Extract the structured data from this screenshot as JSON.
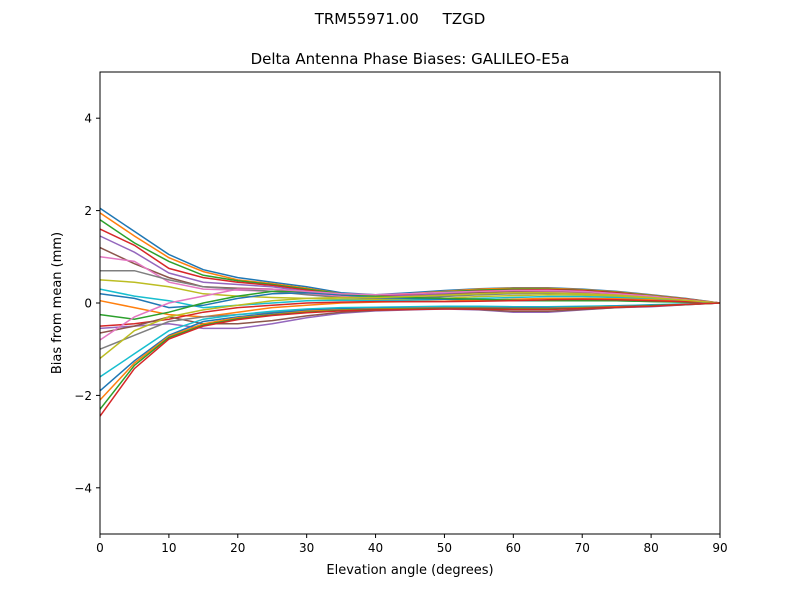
{
  "suptitle": "TRM55971.00     TZGD",
  "chart_data": {
    "type": "line",
    "title": "Delta Antenna Phase Biases: GALILEO-E5a",
    "xlabel": "Elevation angle (degrees)",
    "ylabel": "Bias from mean (mm)",
    "xlim": [
      0,
      90
    ],
    "ylim": [
      -5,
      5
    ],
    "xticks": [
      0,
      10,
      20,
      30,
      40,
      50,
      60,
      70,
      80,
      90
    ],
    "yticks": [
      -4,
      -2,
      0,
      2,
      4
    ],
    "ytick_labels": [
      "−4",
      "−2",
      "0",
      "2",
      "4"
    ],
    "grid": false,
    "legend": "none",
    "colors": [
      "#1f77b4",
      "#ff7f0e",
      "#2ca02c",
      "#d62728",
      "#9467bd",
      "#8c564b",
      "#e377c2",
      "#7f7f7f",
      "#bcbd22",
      "#17becf"
    ],
    "x": [
      0,
      5,
      10,
      15,
      20,
      25,
      30,
      35,
      40,
      45,
      50,
      55,
      60,
      65,
      70,
      75,
      80,
      85,
      90
    ],
    "series": [
      {
        "values": [
          2.05,
          1.55,
          1.05,
          0.72,
          0.55,
          0.45,
          0.35,
          0.22,
          0.18,
          0.22,
          0.27,
          0.31,
          0.33,
          0.33,
          0.3,
          0.25,
          0.18,
          0.1,
          0
        ]
      },
      {
        "values": [
          1.95,
          1.45,
          0.98,
          0.68,
          0.5,
          0.42,
          0.32,
          0.2,
          0.17,
          0.2,
          0.25,
          0.3,
          0.32,
          0.32,
          0.29,
          0.24,
          0.17,
          0.09,
          0
        ]
      },
      {
        "values": [
          1.8,
          1.3,
          0.9,
          0.6,
          0.48,
          0.4,
          0.3,
          0.2,
          0.16,
          0.19,
          0.24,
          0.28,
          0.3,
          0.3,
          0.28,
          0.23,
          0.16,
          0.08,
          0
        ]
      },
      {
        "values": [
          1.6,
          1.25,
          0.75,
          0.55,
          0.45,
          0.38,
          0.28,
          0.18,
          0.15,
          0.18,
          0.22,
          0.26,
          0.28,
          0.29,
          0.27,
          0.22,
          0.15,
          0.08,
          0
        ]
      },
      {
        "values": [
          1.45,
          1.1,
          0.65,
          0.45,
          0.4,
          0.35,
          0.25,
          0.17,
          0.14,
          0.16,
          0.2,
          0.24,
          0.26,
          0.27,
          0.25,
          0.2,
          0.14,
          0.07,
          0
        ]
      },
      {
        "values": [
          1.2,
          0.85,
          0.55,
          0.35,
          0.32,
          0.3,
          0.22,
          0.15,
          0.12,
          0.14,
          0.18,
          0.22,
          0.24,
          0.25,
          0.23,
          0.19,
          0.13,
          0.07,
          0
        ]
      },
      {
        "values": [
          1.0,
          0.9,
          0.45,
          0.3,
          0.28,
          0.25,
          0.2,
          0.14,
          0.1,
          0.12,
          0.16,
          0.2,
          0.22,
          0.23,
          0.21,
          0.17,
          0.12,
          0.06,
          0
        ]
      },
      {
        "values": [
          0.7,
          0.7,
          0.5,
          0.35,
          0.3,
          0.25,
          0.18,
          0.12,
          0.09,
          0.1,
          0.14,
          0.18,
          0.2,
          0.21,
          0.2,
          0.16,
          0.11,
          0.06,
          0
        ]
      },
      {
        "values": [
          0.5,
          0.45,
          0.35,
          0.2,
          0.15,
          0.12,
          0.1,
          0.08,
          0.07,
          0.08,
          0.1,
          0.14,
          0.16,
          0.18,
          0.17,
          0.14,
          0.1,
          0.05,
          0
        ]
      },
      {
        "values": [
          0.3,
          0.15,
          0.05,
          -0.1,
          -0.05,
          0.0,
          0.05,
          0.06,
          0.05,
          0.06,
          0.08,
          0.1,
          0.12,
          0.14,
          0.14,
          0.12,
          0.08,
          0.04,
          0
        ]
      },
      {
        "values": [
          0.2,
          0.1,
          -0.1,
          -0.05,
          0.1,
          0.2,
          0.22,
          0.18,
          0.12,
          0.1,
          0.08,
          0.06,
          0.05,
          0.05,
          0.05,
          0.05,
          0.04,
          0.02,
          0
        ]
      },
      {
        "values": [
          0.05,
          -0.1,
          -0.25,
          -0.3,
          -0.2,
          -0.1,
          -0.05,
          0.0,
          0.02,
          0.03,
          0.04,
          0.06,
          0.08,
          0.1,
          0.1,
          0.09,
          0.07,
          0.03,
          0
        ]
      },
      {
        "values": [
          -0.25,
          -0.35,
          -0.2,
          0.0,
          0.15,
          0.25,
          0.25,
          0.2,
          0.15,
          0.12,
          0.1,
          0.08,
          0.06,
          0.05,
          0.05,
          0.05,
          0.03,
          0.02,
          0
        ]
      },
      {
        "values": [
          -0.5,
          -0.45,
          -0.35,
          -0.2,
          -0.1,
          -0.05,
          0.0,
          0.02,
          0.03,
          0.03,
          0.03,
          0.04,
          0.05,
          0.07,
          0.08,
          0.07,
          0.05,
          0.03,
          0
        ]
      },
      {
        "values": [
          -0.55,
          -0.5,
          -0.45,
          -0.55,
          -0.55,
          -0.45,
          -0.32,
          -0.22,
          -0.17,
          -0.15,
          -0.13,
          -0.15,
          -0.2,
          -0.2,
          -0.15,
          -0.1,
          -0.08,
          -0.04,
          0
        ]
      },
      {
        "values": [
          -0.65,
          -0.5,
          -0.3,
          -0.45,
          -0.45,
          -0.38,
          -0.28,
          -0.2,
          -0.16,
          -0.14,
          -0.12,
          -0.14,
          -0.18,
          -0.18,
          -0.14,
          -0.1,
          -0.07,
          -0.04,
          0
        ]
      },
      {
        "values": [
          -0.8,
          -0.3,
          0.0,
          0.15,
          0.3,
          0.3,
          0.25,
          0.2,
          0.18,
          0.2,
          0.23,
          0.25,
          0.27,
          0.27,
          0.25,
          0.2,
          0.15,
          0.07,
          0
        ]
      },
      {
        "values": [
          -1.0,
          -0.7,
          -0.4,
          -0.3,
          -0.25,
          -0.2,
          -0.15,
          -0.12,
          -0.1,
          -0.1,
          -0.08,
          -0.08,
          -0.1,
          -0.1,
          -0.08,
          -0.06,
          -0.05,
          -0.03,
          0
        ]
      },
      {
        "values": [
          -1.2,
          -0.6,
          -0.3,
          -0.15,
          -0.05,
          0.05,
          0.1,
          0.12,
          0.12,
          0.14,
          0.17,
          0.2,
          0.22,
          0.22,
          0.2,
          0.17,
          0.12,
          0.06,
          0
        ]
      },
      {
        "values": [
          -1.6,
          -1.1,
          -0.6,
          -0.35,
          -0.25,
          -0.18,
          -0.13,
          -0.1,
          -0.09,
          -0.08,
          -0.07,
          -0.07,
          -0.08,
          -0.08,
          -0.07,
          -0.06,
          -0.04,
          -0.02,
          0
        ]
      },
      {
        "values": [
          -1.9,
          -1.25,
          -0.7,
          -0.4,
          -0.3,
          -0.22,
          -0.16,
          -0.13,
          -0.12,
          -0.11,
          -0.1,
          -0.1,
          -0.1,
          -0.1,
          -0.09,
          -0.07,
          -0.05,
          -0.03,
          0
        ]
      },
      {
        "values": [
          -2.1,
          -1.3,
          -0.72,
          -0.45,
          -0.32,
          -0.25,
          -0.18,
          -0.15,
          -0.13,
          -0.12,
          -0.11,
          -0.11,
          -0.12,
          -0.12,
          -0.1,
          -0.08,
          -0.06,
          -0.03,
          0
        ]
      },
      {
        "values": [
          -2.3,
          -1.35,
          -0.75,
          -0.48,
          -0.34,
          -0.26,
          -0.2,
          -0.16,
          -0.14,
          -0.13,
          -0.12,
          -0.12,
          -0.13,
          -0.13,
          -0.11,
          -0.09,
          -0.06,
          -0.03,
          0
        ]
      },
      {
        "values": [
          -2.45,
          -1.42,
          -0.78,
          -0.5,
          -0.36,
          -0.27,
          -0.21,
          -0.17,
          -0.15,
          -0.14,
          -0.13,
          -0.13,
          -0.14,
          -0.14,
          -0.12,
          -0.09,
          -0.07,
          -0.03,
          0
        ]
      }
    ]
  }
}
